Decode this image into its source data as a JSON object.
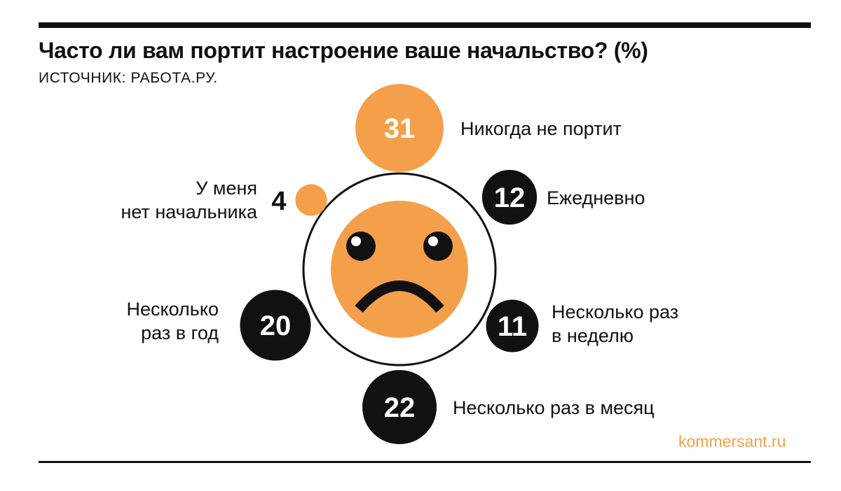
{
  "title": "Часто ли вам портит настроение ваше начальство? (%)",
  "source": "ИСТОЧНИК: РАБОТА.РУ.",
  "brand": "kommersant.ru",
  "colors": {
    "orange": "#f4a04b",
    "black": "#111111",
    "white": "#ffffff"
  },
  "icon": "sad-face-icon",
  "chart_data": {
    "type": "bubble",
    "title": "Часто ли вам портит настроение ваше начальство? (%)",
    "unit": "%",
    "items": [
      {
        "label": "Никогда не портит",
        "value": 31,
        "color": "orange"
      },
      {
        "label": "Ежедневно",
        "value": 12,
        "color": "black"
      },
      {
        "label": "Несколько раз в неделю",
        "value": 11,
        "color": "black"
      },
      {
        "label": "Несколько раз в месяц",
        "value": 22,
        "color": "black"
      },
      {
        "label": "Несколько раз в год",
        "value": 20,
        "color": "black"
      },
      {
        "label": "У меня нет начальника",
        "value": 4,
        "color": "orange"
      }
    ]
  }
}
